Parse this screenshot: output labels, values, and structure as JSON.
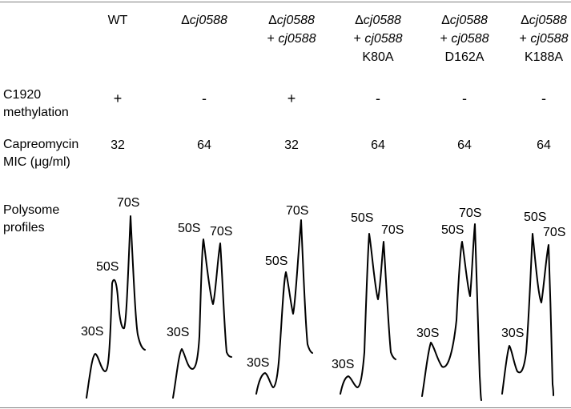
{
  "columns": [
    {
      "lines": [
        {
          "parts": [
            {
              "text": "WT",
              "italic": false
            }
          ]
        }
      ]
    },
    {
      "lines": [
        {
          "parts": [
            {
              "text": "Δ",
              "italic": false
            },
            {
              "text": "cj0588",
              "italic": true
            }
          ]
        }
      ]
    },
    {
      "lines": [
        {
          "parts": [
            {
              "text": "Δ",
              "italic": false
            },
            {
              "text": "cj0588",
              "italic": true
            }
          ]
        },
        {
          "parts": [
            {
              "text": "+ ",
              "italic": false
            },
            {
              "text": "cj0588",
              "italic": true
            }
          ]
        }
      ]
    },
    {
      "lines": [
        {
          "parts": [
            {
              "text": "Δ",
              "italic": false
            },
            {
              "text": "cj0588",
              "italic": true
            }
          ]
        },
        {
          "parts": [
            {
              "text": "+ ",
              "italic": false
            },
            {
              "text": "cj0588",
              "italic": true
            }
          ]
        },
        {
          "parts": [
            {
              "text": "K80A",
              "italic": false
            }
          ]
        }
      ]
    },
    {
      "lines": [
        {
          "parts": [
            {
              "text": "Δ",
              "italic": false
            },
            {
              "text": "cj0588",
              "italic": true
            }
          ]
        },
        {
          "parts": [
            {
              "text": "+ ",
              "italic": false
            },
            {
              "text": "cj0588",
              "italic": true
            }
          ]
        },
        {
          "parts": [
            {
              "text": "D162A",
              "italic": false
            }
          ]
        }
      ]
    },
    {
      "lines": [
        {
          "parts": [
            {
              "text": "Δ",
              "italic": false
            },
            {
              "text": "cj0588",
              "italic": true
            }
          ]
        },
        {
          "parts": [
            {
              "text": "+ ",
              "italic": false
            },
            {
              "text": "cj0588",
              "italic": true
            }
          ]
        },
        {
          "parts": [
            {
              "text": "K188A",
              "italic": false
            }
          ]
        }
      ]
    }
  ],
  "rows": {
    "methylation": {
      "label_lines": [
        "C1920",
        "methylation"
      ],
      "values": [
        "+",
        "-",
        "+",
        "-",
        "-",
        "-"
      ]
    },
    "mic": {
      "label_lines": [
        "Capreomycin",
        "MIC (μg/ml)"
      ],
      "values": [
        "32",
        "64",
        "32",
        "64",
        "64",
        "64"
      ]
    },
    "polysome": {
      "label_lines": [
        "Polysome",
        "profiles"
      ]
    }
  },
  "profile_labels": [
    "30S",
    "50S",
    "70S"
  ]
}
